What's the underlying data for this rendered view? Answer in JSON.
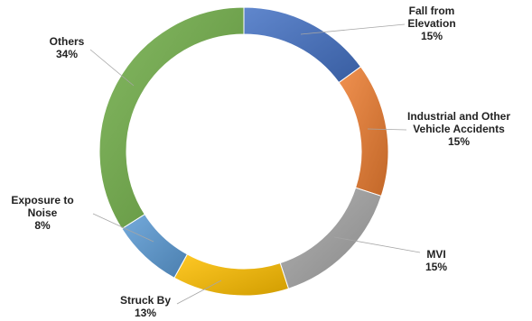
{
  "chart_data": {
    "type": "pie",
    "variant": "donut",
    "title": "",
    "legend": "none",
    "slices": [
      {
        "name": "Fall from Elevation",
        "label_lines": [
          "Fall from",
          "Elevation"
        ],
        "value": 15,
        "pct_label": "15%",
        "color": "#4472c4"
      },
      {
        "name": "Industrial and Other Vehicle Accidents",
        "label_lines": [
          "Industrial and Other",
          "Vehicle Accidents"
        ],
        "value": 15,
        "pct_label": "15%",
        "color": "#ed7d31"
      },
      {
        "name": "MVI",
        "label_lines": [
          "MVI"
        ],
        "value": 15,
        "pct_label": "15%",
        "color": "#a5a5a5"
      },
      {
        "name": "Struck By",
        "label_lines": [
          "Struck By"
        ],
        "value": 13,
        "pct_label": "13%",
        "color": "#ffc000"
      },
      {
        "name": "Exposure to Noise",
        "label_lines": [
          "Exposure to",
          "Noise"
        ],
        "value": 8,
        "pct_label": "8%",
        "color": "#5b9bd5"
      },
      {
        "name": "Others",
        "label_lines": [
          "Others"
        ],
        "value": 34,
        "pct_label": "34%",
        "color": "#70ad47"
      }
    ]
  }
}
